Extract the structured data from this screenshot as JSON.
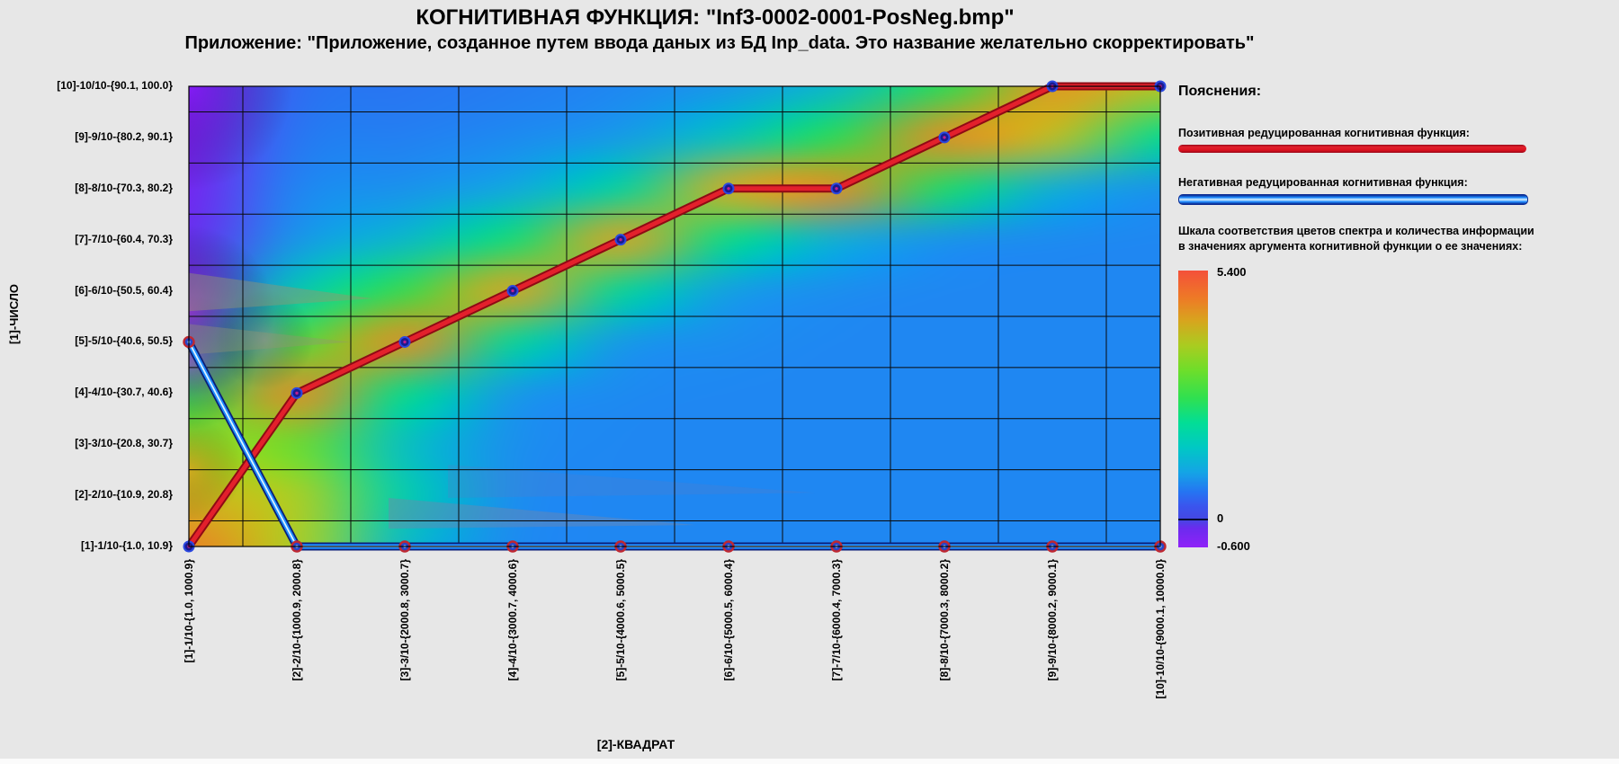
{
  "title": "КОГНИТИВНАЯ ФУНКЦИЯ: \"Inf3-0002-0001-PosNeg.bmp\"",
  "subtitle": "Приложение: \"Приложение, созданное путем ввода даных из БД Inp_data. Это название желательно скорректировать\"",
  "axes": {
    "y_title": "[1]-ЧИСЛО",
    "x_title": "[2]-КВАДРАТ",
    "y_labels_top_to_bottom": [
      "[10]-10/10-{90.1, 100.0}",
      "[9]-9/10-{80.2, 90.1}",
      "[8]-8/10-{70.3, 80.2}",
      "[7]-7/10-{60.4, 70.3}",
      "[6]-6/10-{50.5, 60.4}",
      "[5]-5/10-{40.6, 50.5}",
      "[4]-4/10-{30.7, 40.6}",
      "[3]-3/10-{20.8, 30.7}",
      "[2]-2/10-{10.9, 20.8}",
      "[1]-1/10-{1.0, 10.9}"
    ],
    "x_labels": [
      "[1]-1/10-{1.0, 1000.9}",
      "[2]-2/10-{1000.9, 2000.8}",
      "[3]-3/10-{2000.8, 3000.7}",
      "[4]-4/10-{3000.7, 4000.6}",
      "[5]-5/10-{4000.6, 5000.5}",
      "[6]-6/10-{5000.5, 6000.4}",
      "[7]-7/10-{6000.4, 7000.3}",
      "[8]-8/10-{7000.3, 8000.2}",
      "[9]-9/10-{8000.2, 9000.1}",
      "[10]-10/10-{9000.1, 10000.0}"
    ]
  },
  "legend": {
    "heading": "Пояснения:",
    "items": [
      {
        "label": "Позитивная редуцированная когнитивная функция:",
        "color": "#d8101e"
      },
      {
        "label": "Негативная редуцированная когнитивная функция:",
        "color": "#1e8cff"
      }
    ],
    "scale_caption_line1": "Шкала соответствия цветов спектра и количества информации",
    "scale_caption_line2": "в значениях аргумента когнитивной функции о ее значениях:",
    "scale_max": "5.400",
    "scale_zero": "0",
    "scale_min": "-0.600"
  },
  "chart_data": {
    "type": "heatmap+line",
    "x_categories": [
      "[1]-1/10-{1.0, 1000.9}",
      "[2]-2/10-{1000.9, 2000.8}",
      "[3]-3/10-{2000.8, 3000.7}",
      "[4]-4/10-{3000.7, 4000.6}",
      "[5]-5/10-{4000.6, 5000.5}",
      "[6]-6/10-{5000.5, 6000.4}",
      "[7]-7/10-{6000.4, 7000.3}",
      "[8]-8/10-{7000.3, 8000.2}",
      "[9]-9/10-{8000.2, 9000.1}",
      "[10]-10/10-{9000.1, 10000.0}"
    ],
    "y_categories_bottom_to_top": [
      "[1]-1/10-{1.0, 10.9}",
      "[2]-2/10-{10.9, 20.8}",
      "[3]-3/10-{20.8, 30.7}",
      "[4]-4/10-{30.7, 40.6}",
      "[5]-5/10-{40.6, 50.5}",
      "[6]-6/10-{50.5, 60.4}",
      "[7]-7/10-{60.4, 70.3}",
      "[8]-8/10-{70.3, 80.2}",
      "[9]-9/10-{80.2, 90.1}",
      "[10]-10/10-{90.1, 100.0}"
    ],
    "series": [
      {
        "name": "Позитивная редуцированная когнитивная функция",
        "color": "#d8101e",
        "values": [
          1,
          4,
          5,
          6,
          7,
          8,
          8,
          9,
          10,
          10
        ]
      },
      {
        "name": "Негативная редуцированная когнитивная функция",
        "color": "#1e8cff",
        "values": [
          5,
          1,
          1,
          1,
          1,
          1,
          1,
          1,
          1,
          1
        ]
      }
    ],
    "value_scale": {
      "min": -0.6,
      "zero": 0,
      "max": 5.4
    },
    "heatmap_rows_top_to_bottom": [
      [
        -0.5,
        0.35,
        0.45,
        0.55,
        0.7,
        1.0,
        1.6,
        3.0,
        4.6,
        4.1
      ],
      [
        -0.45,
        0.5,
        0.6,
        0.75,
        1.05,
        1.8,
        3.0,
        4.7,
        4.2,
        2.4
      ],
      [
        -0.4,
        0.7,
        0.9,
        1.3,
        2.2,
        4.4,
        4.7,
        2.8,
        1.4,
        0.9
      ],
      [
        -0.3,
        1.0,
        1.6,
        2.7,
        4.5,
        2.5,
        1.4,
        0.9,
        0.75,
        0.7
      ],
      [
        -0.15,
        1.9,
        3.1,
        4.5,
        2.3,
        1.1,
        0.8,
        0.7,
        0.7,
        0.7
      ],
      [
        0.9,
        3.3,
        4.7,
        2.3,
        1.0,
        0.8,
        0.7,
        0.7,
        0.7,
        0.7
      ],
      [
        2.9,
        4.7,
        2.5,
        1.0,
        0.75,
        0.7,
        0.7,
        0.7,
        0.7,
        0.7
      ],
      [
        3.9,
        3.5,
        1.7,
        0.85,
        0.7,
        0.7,
        0.7,
        0.7,
        0.7,
        0.7
      ],
      [
        4.3,
        4.0,
        2.0,
        0.8,
        0.7,
        0.7,
        0.7,
        0.7,
        0.7,
        0.7
      ],
      [
        4.8,
        4.0,
        1.6,
        0.75,
        0.7,
        0.7,
        0.7,
        0.7,
        0.7,
        0.7
      ]
    ],
    "colormap_stops": [
      [
        0.0,
        "#8e14f5"
      ],
      [
        0.095,
        "#4a42e8"
      ],
      [
        0.15,
        "#2e6cf2"
      ],
      [
        0.22,
        "#1e88f2"
      ],
      [
        0.32,
        "#0faae0"
      ],
      [
        0.42,
        "#00ccb4"
      ],
      [
        0.52,
        "#00e08c"
      ],
      [
        0.6,
        "#2ade52"
      ],
      [
        0.68,
        "#66de2e"
      ],
      [
        0.76,
        "#a8d422"
      ],
      [
        0.84,
        "#e0a81e"
      ],
      [
        0.92,
        "#f07426"
      ],
      [
        1.0,
        "#f44a38"
      ]
    ],
    "overlay_blobs": [
      {
        "cx": 1.0,
        "cy": 5.6,
        "r": 95,
        "color": "rgba(232,24,200,0.50)"
      },
      {
        "cx": 1.0,
        "cy": 4.6,
        "r": 75,
        "color": "rgba(240,40,210,0.42)"
      },
      {
        "cx": 1.7,
        "cy": 5.05,
        "r": 55,
        "color": "rgba(225,60,215,0.30)"
      },
      {
        "cx": 1.0,
        "cy": 10.0,
        "r": 115,
        "color": "rgba(140,20,250,0.45)"
      },
      {
        "cx": 1.0,
        "cy": 2.5,
        "r": 60,
        "color": "rgba(250,120,30,0.35)"
      }
    ],
    "overlay_rays": [
      {
        "pts": [
          [
            1,
            6.35
          ],
          [
            2.7,
            5.85
          ],
          [
            1,
            5.6
          ]
        ],
        "color": "rgba(150,150,112,0.45)"
      },
      {
        "pts": [
          [
            1,
            5.35
          ],
          [
            2.5,
            5.0
          ],
          [
            1,
            4.75
          ]
        ],
        "color": "rgba(150,150,112,0.38)"
      },
      {
        "pts": [
          [
            2.85,
            1.95
          ],
          [
            5.7,
            1.42
          ],
          [
            2.85,
            1.35
          ]
        ],
        "color": "rgba(110,135,175,0.45)"
      },
      {
        "pts": [
          [
            3.4,
            2.6
          ],
          [
            6.8,
            2.05
          ],
          [
            3.4,
            1.95
          ]
        ],
        "color": "rgba(90,125,195,0.25)"
      }
    ],
    "grid": "black 1px, lines at cell midpoints",
    "legend_position": "right"
  }
}
